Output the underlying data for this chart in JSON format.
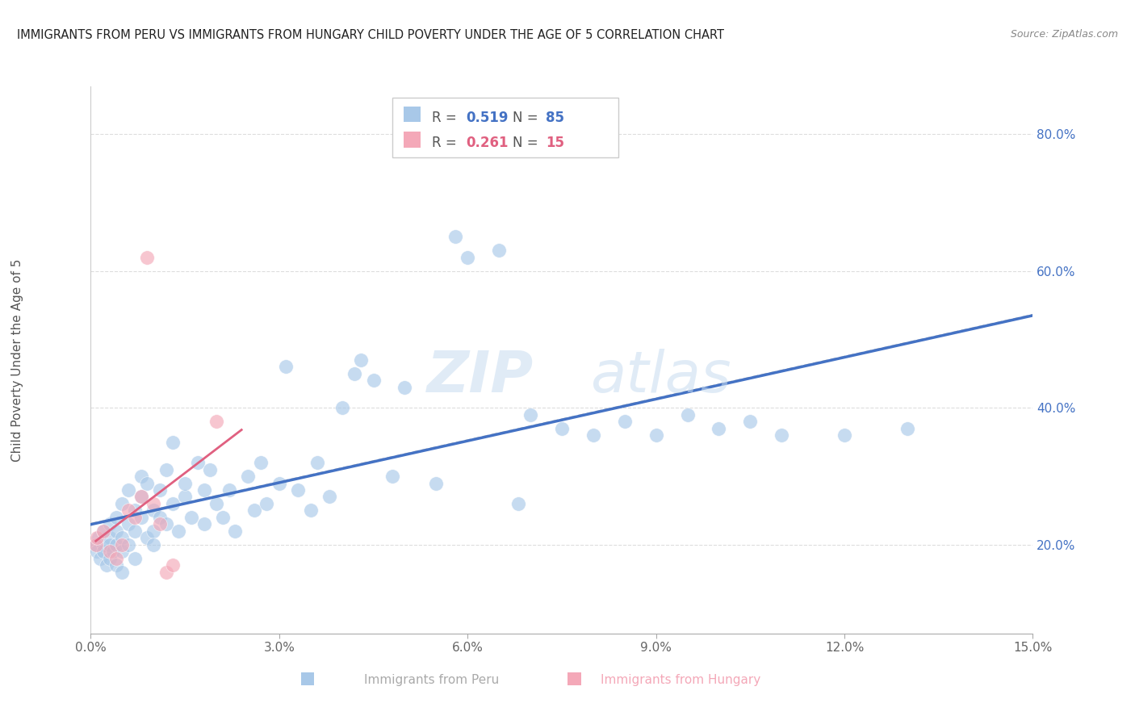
{
  "title": "IMMIGRANTS FROM PERU VS IMMIGRANTS FROM HUNGARY CHILD POVERTY UNDER THE AGE OF 5 CORRELATION CHART",
  "source": "Source: ZipAtlas.com",
  "xlabel_ticks": [
    "0.0%",
    "3.0%",
    "6.0%",
    "9.0%",
    "12.0%",
    "15.0%"
  ],
  "xlabel_values": [
    0.0,
    0.03,
    0.06,
    0.09,
    0.12,
    0.15
  ],
  "ylabel_ticks": [
    "20.0%",
    "40.0%",
    "60.0%",
    "80.0%"
  ],
  "ylabel_values": [
    0.2,
    0.4,
    0.6,
    0.8
  ],
  "xlim": [
    0.0,
    0.15
  ],
  "ylim": [
    0.07,
    0.87
  ],
  "ylabel_label": "Child Poverty Under the Age of 5",
  "legend_peru_r": "0.519",
  "legend_peru_n": "85",
  "legend_hungary_r": "0.261",
  "legend_hungary_n": "15",
  "color_peru": "#A8C8E8",
  "color_hungary": "#F4A8B8",
  "color_trendline_peru": "#4472C4",
  "color_trendline_hungary": "#E06080",
  "color_trendline_overall": "#BBBBBB",
  "peru_x": [
    0.0008,
    0.001,
    0.0012,
    0.0015,
    0.002,
    0.002,
    0.002,
    0.0025,
    0.003,
    0.003,
    0.003,
    0.003,
    0.0035,
    0.004,
    0.004,
    0.004,
    0.004,
    0.005,
    0.005,
    0.005,
    0.005,
    0.006,
    0.006,
    0.006,
    0.007,
    0.007,
    0.007,
    0.008,
    0.008,
    0.008,
    0.009,
    0.009,
    0.01,
    0.01,
    0.01,
    0.011,
    0.011,
    0.012,
    0.012,
    0.013,
    0.013,
    0.014,
    0.015,
    0.015,
    0.016,
    0.017,
    0.018,
    0.018,
    0.019,
    0.02,
    0.021,
    0.022,
    0.023,
    0.025,
    0.026,
    0.027,
    0.028,
    0.03,
    0.031,
    0.033,
    0.035,
    0.036,
    0.038,
    0.04,
    0.042,
    0.043,
    0.045,
    0.048,
    0.05,
    0.055,
    0.058,
    0.06,
    0.065,
    0.068,
    0.07,
    0.075,
    0.08,
    0.085,
    0.09,
    0.095,
    0.1,
    0.105,
    0.11,
    0.12,
    0.13
  ],
  "peru_y": [
    0.2,
    0.19,
    0.21,
    0.18,
    0.22,
    0.2,
    0.19,
    0.17,
    0.21,
    0.18,
    0.2,
    0.23,
    0.19,
    0.17,
    0.22,
    0.2,
    0.24,
    0.16,
    0.21,
    0.19,
    0.26,
    0.2,
    0.23,
    0.28,
    0.18,
    0.22,
    0.25,
    0.24,
    0.27,
    0.3,
    0.21,
    0.29,
    0.22,
    0.25,
    0.2,
    0.28,
    0.24,
    0.23,
    0.31,
    0.26,
    0.35,
    0.22,
    0.27,
    0.29,
    0.24,
    0.32,
    0.28,
    0.23,
    0.31,
    0.26,
    0.24,
    0.28,
    0.22,
    0.3,
    0.25,
    0.32,
    0.26,
    0.29,
    0.46,
    0.28,
    0.25,
    0.32,
    0.27,
    0.4,
    0.45,
    0.47,
    0.44,
    0.3,
    0.43,
    0.29,
    0.65,
    0.62,
    0.63,
    0.26,
    0.39,
    0.37,
    0.36,
    0.38,
    0.36,
    0.39,
    0.37,
    0.38,
    0.36,
    0.36,
    0.37
  ],
  "hungary_x": [
    0.0008,
    0.001,
    0.002,
    0.003,
    0.004,
    0.005,
    0.006,
    0.007,
    0.008,
    0.009,
    0.01,
    0.011,
    0.012,
    0.013,
    0.02
  ],
  "hungary_y": [
    0.2,
    0.21,
    0.22,
    0.19,
    0.18,
    0.2,
    0.25,
    0.24,
    0.27,
    0.62,
    0.26,
    0.23,
    0.16,
    0.17,
    0.38
  ]
}
